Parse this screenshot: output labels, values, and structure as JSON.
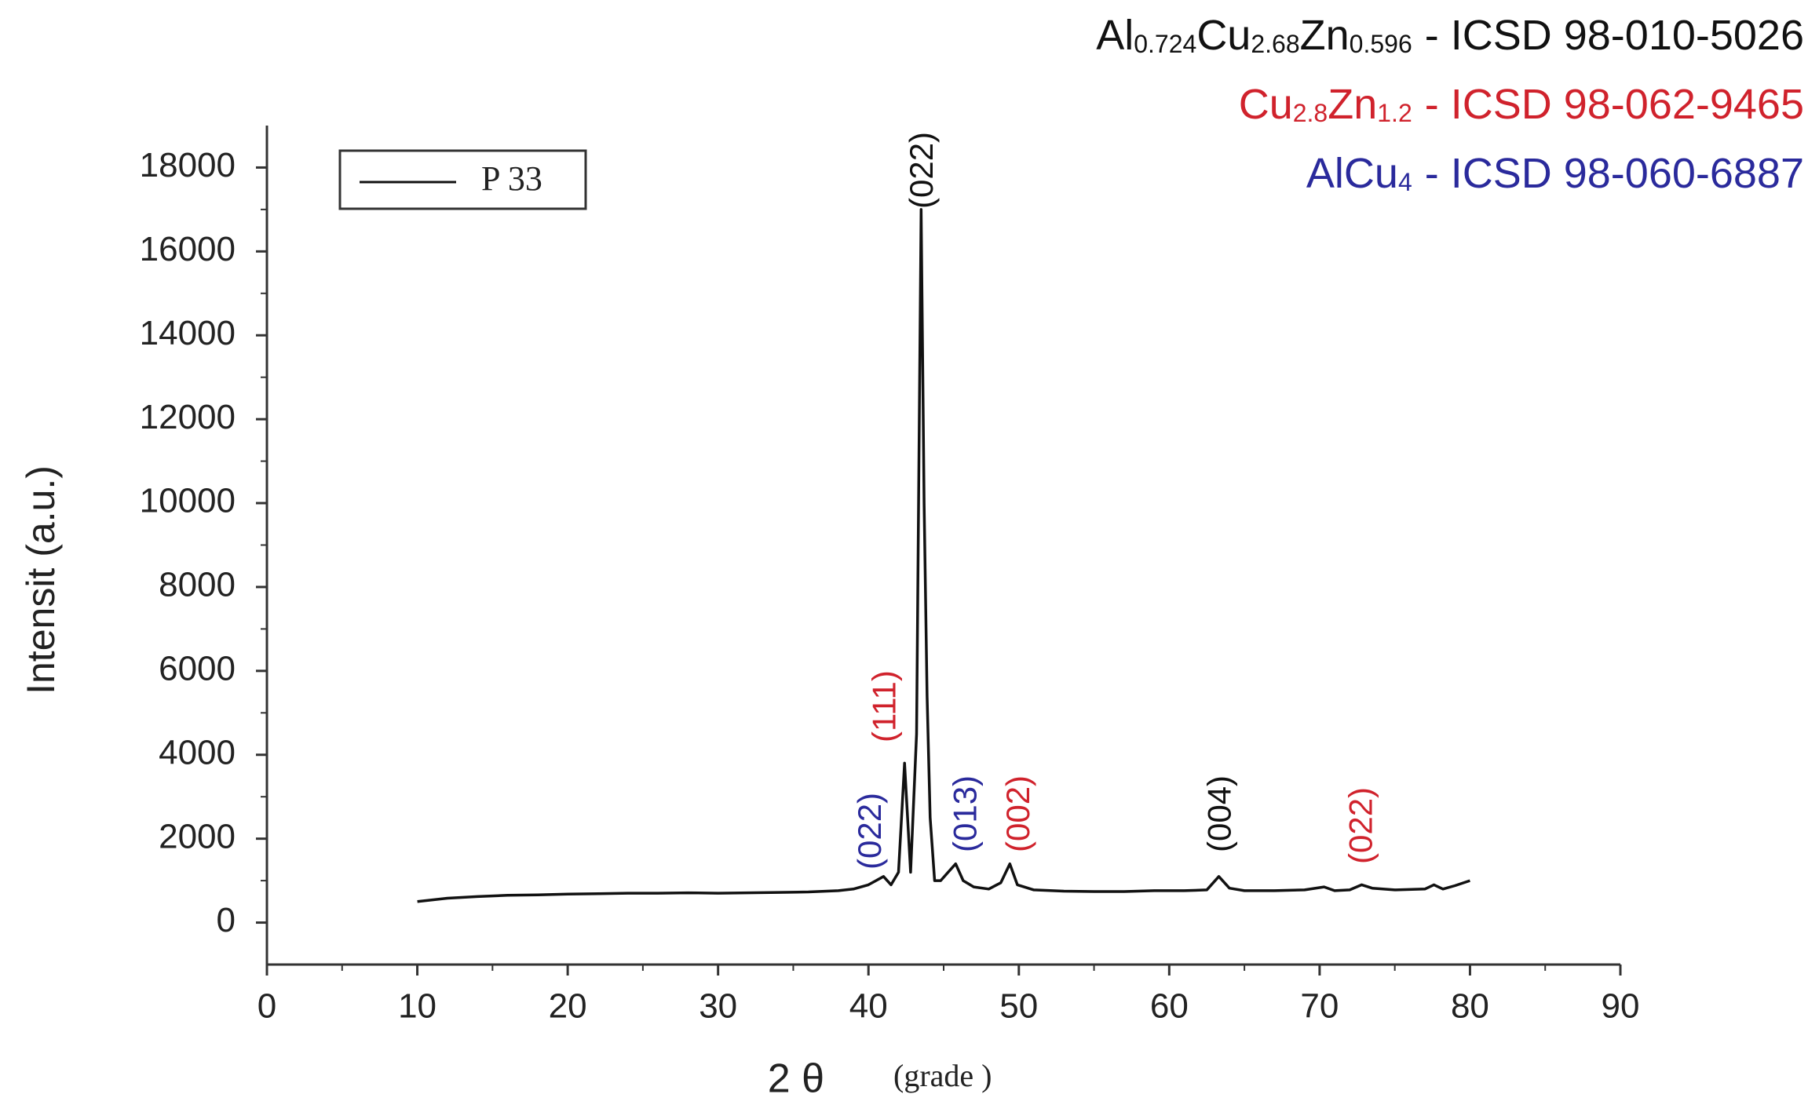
{
  "chart_data": {
    "type": "line",
    "phases": [
      {
        "formula": [
          "Al",
          "0.724",
          "Cu",
          "2.68",
          "Zn",
          "0.596"
        ],
        "ref": "- ICSD 98-010-5026",
        "color": "#111111"
      },
      {
        "formula": [
          "Cu",
          "2.8",
          "Zn",
          "1.2"
        ],
        "ref": "- ICSD 98-062-9465",
        "color": "#d0222c"
      },
      {
        "formula": [
          "AlCu",
          "4"
        ],
        "ref": "- ICSD 98-060-6887",
        "color": "#2a2a9c"
      }
    ],
    "x_label": "2 θ",
    "x_unit": "(grade )",
    "y_label": "Intensit  (a.u.)",
    "xlim": [
      0,
      90
    ],
    "xticks": [
      0,
      10,
      20,
      30,
      40,
      50,
      60,
      70,
      80,
      90
    ],
    "ylim": [
      -1000,
      19000
    ],
    "yticks": [
      0,
      2000,
      4000,
      6000,
      8000,
      10000,
      12000,
      14000,
      16000,
      18000
    ],
    "legend": "upper left",
    "series": [
      {
        "name": "P 33",
        "color": "#111111",
        "x": [
          10,
          12,
          14,
          16,
          18,
          20,
          22,
          24,
          26,
          28,
          30,
          32,
          34,
          36,
          38,
          39,
          40,
          40.5,
          41,
          41.5,
          42,
          42.4,
          42.8,
          43.2,
          43.5,
          43.7,
          43.9,
          44.1,
          44.4,
          44.8,
          45.3,
          45.8,
          46.3,
          47,
          48,
          48.8,
          49.4,
          49.9,
          51,
          53,
          55,
          57,
          59,
          61,
          62.5,
          63.3,
          64,
          65,
          67,
          69,
          70.3,
          71,
          72,
          72.8,
          73.5,
          75,
          77,
          77.6,
          78.2,
          79,
          80
        ],
        "values": [
          500,
          580,
          620,
          650,
          660,
          680,
          690,
          700,
          700,
          710,
          700,
          710,
          720,
          730,
          760,
          800,
          900,
          1000,
          1100,
          900,
          1200,
          3800,
          1200,
          4500,
          17000,
          10000,
          5400,
          2500,
          1000,
          1000,
          1200,
          1400,
          1000,
          850,
          800,
          950,
          1400,
          900,
          780,
          750,
          740,
          740,
          760,
          760,
          780,
          1100,
          820,
          760,
          760,
          780,
          850,
          760,
          780,
          900,
          820,
          780,
          800,
          900,
          800,
          880,
          1000
        ]
      }
    ],
    "annotations": [
      {
        "text": "(022)",
        "x": 40.25,
        "color": "#2a2a9c"
      },
      {
        "text": "(111)",
        "x": 41.2,
        "color": "#d0222c"
      },
      {
        "text": "(022)",
        "x": 43.7,
        "color": "#111111"
      },
      {
        "text": "(013)",
        "x": 46.6,
        "color": "#2a2a9c"
      },
      {
        "text": "(002)",
        "x": 50.1,
        "color": "#d0222c"
      },
      {
        "text": "(004)",
        "x": 63.5,
        "color": "#111111"
      },
      {
        "text": "(022)",
        "x": 72.9,
        "color": "#d0222c"
      }
    ]
  }
}
